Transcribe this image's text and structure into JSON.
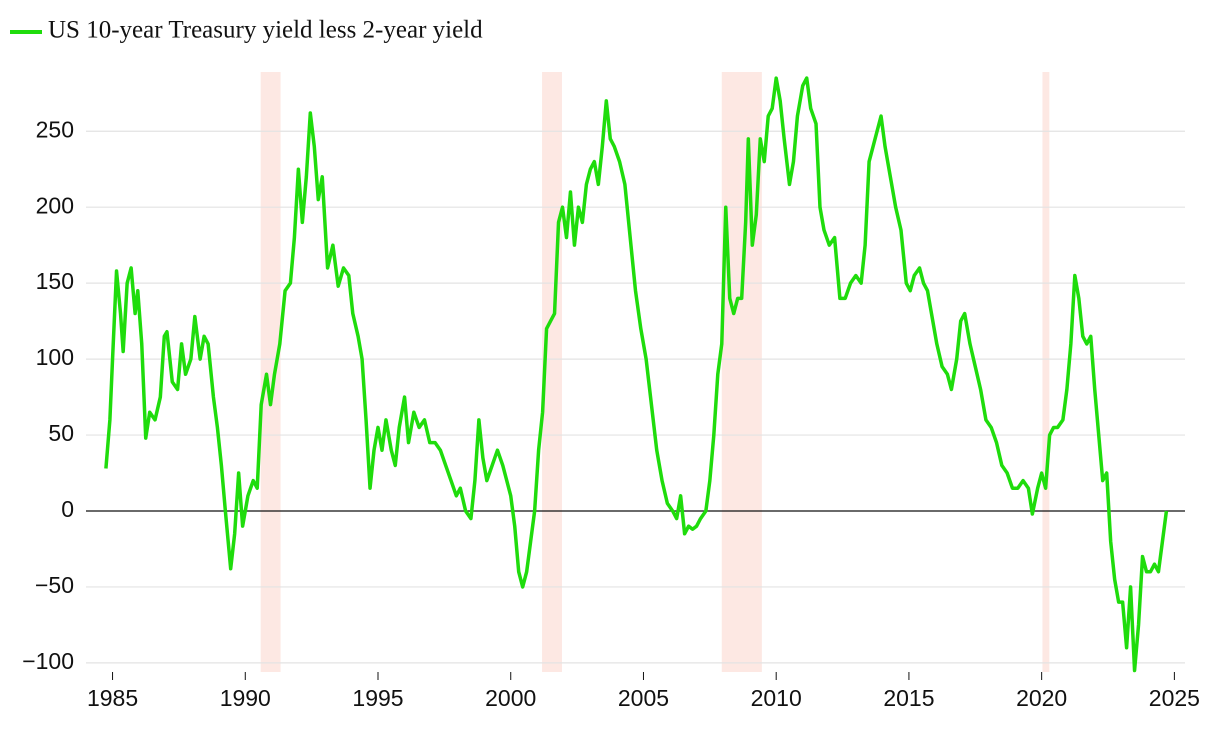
{
  "chart_data": {
    "type": "line",
    "series": [
      {
        "name": "US 10-year Treasury yield less 2-year yield",
        "color": "#1fdc0c",
        "x": [
          1984.75,
          1984.9,
          1985.0,
          1985.15,
          1985.3,
          1985.4,
          1985.55,
          1985.7,
          1985.85,
          1985.95,
          1986.1,
          1986.25,
          1986.4,
          1986.6,
          1986.8,
          1986.95,
          1987.05,
          1987.25,
          1987.45,
          1987.6,
          1987.75,
          1987.95,
          1988.1,
          1988.3,
          1988.45,
          1988.6,
          1988.8,
          1988.95,
          1989.1,
          1989.25,
          1989.45,
          1989.6,
          1989.75,
          1989.9,
          1990.1,
          1990.3,
          1990.45,
          1990.6,
          1990.8,
          1990.95,
          1991.1,
          1991.3,
          1991.5,
          1991.7,
          1991.85,
          1992.0,
          1992.15,
          1992.3,
          1992.45,
          1992.6,
          1992.75,
          1992.9,
          1993.1,
          1993.3,
          1993.5,
          1993.7,
          1993.9,
          1994.05,
          1994.25,
          1994.4,
          1994.55,
          1994.7,
          1994.85,
          1995.0,
          1995.15,
          1995.3,
          1995.5,
          1995.65,
          1995.8,
          1996.0,
          1996.15,
          1996.35,
          1996.55,
          1996.75,
          1996.95,
          1997.15,
          1997.35,
          1997.55,
          1997.75,
          1997.95,
          1998.1,
          1998.3,
          1998.5,
          1998.65,
          1998.8,
          1998.95,
          1999.1,
          1999.3,
          1999.5,
          1999.7,
          1999.85,
          2000.0,
          2000.15,
          2000.3,
          2000.45,
          2000.6,
          2000.75,
          2000.9,
          2001.05,
          2001.2,
          2001.35,
          2001.5,
          2001.65,
          2001.8,
          2001.95,
          2002.1,
          2002.25,
          2002.4,
          2002.55,
          2002.7,
          2002.85,
          2003.0,
          2003.15,
          2003.3,
          2003.45,
          2003.6,
          2003.75,
          2003.9,
          2004.1,
          2004.3,
          2004.5,
          2004.7,
          2004.9,
          2005.1,
          2005.3,
          2005.5,
          2005.7,
          2005.9,
          2006.1,
          2006.25,
          2006.4,
          2006.55,
          2006.7,
          2006.85,
          2007.0,
          2007.15,
          2007.35,
          2007.5,
          2007.65,
          2007.8,
          2007.95,
          2008.1,
          2008.25,
          2008.4,
          2008.55,
          2008.7,
          2008.85,
          2008.95,
          2009.1,
          2009.25,
          2009.4,
          2009.55,
          2009.7,
          2009.85,
          2010.0,
          2010.15,
          2010.3,
          2010.5,
          2010.65,
          2010.8,
          2011.0,
          2011.15,
          2011.3,
          2011.5,
          2011.65,
          2011.8,
          2012.0,
          2012.2,
          2012.4,
          2012.6,
          2012.8,
          2013.0,
          2013.2,
          2013.35,
          2013.5,
          2013.65,
          2013.8,
          2013.95,
          2014.1,
          2014.3,
          2014.5,
          2014.7,
          2014.9,
          2015.05,
          2015.2,
          2015.4,
          2015.55,
          2015.7,
          2015.85,
          2016.05,
          2016.25,
          2016.45,
          2016.6,
          2016.8,
          2016.95,
          2017.1,
          2017.3,
          2017.5,
          2017.7,
          2017.9,
          2018.1,
          2018.3,
          2018.5,
          2018.7,
          2018.9,
          2019.1,
          2019.3,
          2019.5,
          2019.65,
          2019.85,
          2020.0,
          2020.15,
          2020.3,
          2020.45,
          2020.6,
          2020.8,
          2020.95,
          2021.1,
          2021.25,
          2021.4,
          2021.55,
          2021.7,
          2021.85,
          2022.0,
          2022.15,
          2022.3,
          2022.45,
          2022.6,
          2022.75,
          2022.9,
          2023.05,
          2023.2,
          2023.35,
          2023.5,
          2023.65,
          2023.8,
          2023.95,
          2024.1,
          2024.25,
          2024.4,
          2024.55,
          2024.7
        ],
        "values": [
          28,
          60,
          100,
          158,
          130,
          105,
          150,
          160,
          130,
          145,
          110,
          48,
          65,
          60,
          75,
          115,
          118,
          85,
          80,
          110,
          90,
          100,
          128,
          100,
          115,
          110,
          75,
          55,
          30,
          0,
          -38,
          -15,
          25,
          -10,
          10,
          20,
          15,
          70,
          90,
          70,
          90,
          110,
          145,
          150,
          180,
          225,
          190,
          220,
          262,
          240,
          205,
          220,
          160,
          175,
          148,
          160,
          155,
          130,
          115,
          100,
          60,
          15,
          40,
          55,
          40,
          60,
          40,
          30,
          55,
          75,
          45,
          65,
          55,
          60,
          45,
          45,
          40,
          30,
          20,
          10,
          15,
          0,
          -5,
          20,
          60,
          35,
          20,
          30,
          40,
          30,
          20,
          10,
          -10,
          -40,
          -50,
          -40,
          -20,
          0,
          40,
          65,
          120,
          125,
          130,
          190,
          200,
          180,
          210,
          175,
          200,
          190,
          215,
          225,
          230,
          215,
          240,
          270,
          245,
          240,
          230,
          215,
          180,
          145,
          120,
          100,
          70,
          40,
          20,
          5,
          0,
          -5,
          10,
          -15,
          -10,
          -12,
          -10,
          -5,
          0,
          20,
          50,
          90,
          110,
          200,
          140,
          130,
          140,
          140,
          190,
          245,
          175,
          195,
          245,
          230,
          260,
          265,
          285,
          270,
          245,
          215,
          230,
          260,
          280,
          285,
          265,
          255,
          200,
          185,
          175,
          180,
          140,
          140,
          150,
          155,
          150,
          175,
          230,
          240,
          250,
          260,
          240,
          220,
          200,
          185,
          150,
          145,
          155,
          160,
          150,
          145,
          130,
          110,
          95,
          90,
          80,
          100,
          125,
          130,
          110,
          95,
          80,
          60,
          55,
          45,
          30,
          25,
          15,
          15,
          20,
          15,
          -2,
          15,
          25,
          15,
          50,
          55,
          55,
          60,
          80,
          110,
          155,
          140,
          115,
          110,
          115,
          80,
          50,
          20,
          25,
          -20,
          -45,
          -60,
          -60,
          -90,
          -50,
          -105,
          -75,
          -30,
          -40,
          -40,
          -35,
          -40,
          -20,
          0
        ]
      }
    ],
    "shaded_periods": [
      {
        "start": 1990.58,
        "end": 1991.33
      },
      {
        "start": 2001.18,
        "end": 2001.93
      },
      {
        "start": 2007.95,
        "end": 2009.46
      },
      {
        "start": 2020.03,
        "end": 2020.29
      }
    ],
    "shade_color": "#fde8e3",
    "xlim": [
      1984,
      2025.4
    ],
    "xticks": [
      1985,
      1990,
      1995,
      2000,
      2005,
      2010,
      2015,
      2020,
      2025
    ],
    "ylim": [
      -106,
      289
    ],
    "yticks": [
      {
        "value": -100,
        "label": "−100"
      },
      {
        "value": -50,
        "label": "−50"
      },
      0,
      50,
      100,
      150,
      200,
      250
    ],
    "grid": true
  }
}
